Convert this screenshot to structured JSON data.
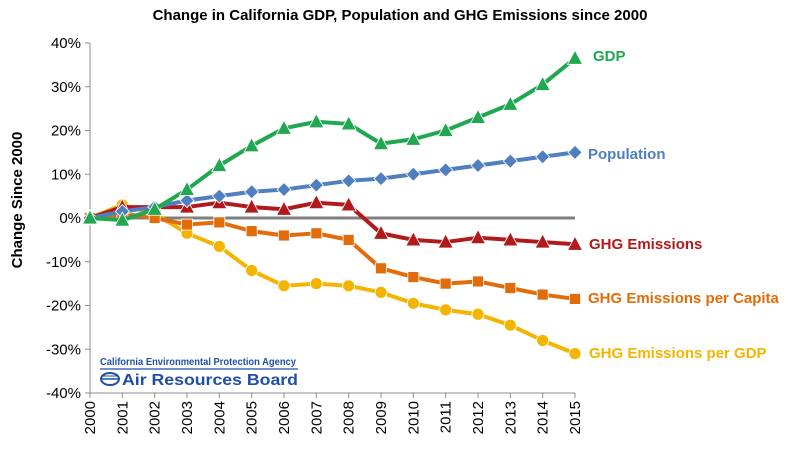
{
  "chart_data": {
    "type": "line",
    "title": "Change in California GDP, Population and GHG Emissions since 2000",
    "ylabel": "Change Since 2000",
    "xlabel": "",
    "x": [
      "2000",
      "2001",
      "2002",
      "2003",
      "2004",
      "2005",
      "2006",
      "2007",
      "2008",
      "2009",
      "2010",
      "2011",
      "2012",
      "2013",
      "2014",
      "2015"
    ],
    "ylim": [
      -40,
      40
    ],
    "yticks": [
      40,
      30,
      20,
      10,
      0,
      -10,
      -20,
      -30,
      -40
    ],
    "ytick_labels": [
      "40%",
      "30%",
      "20%",
      "10%",
      "0%",
      "-10%",
      "-20%",
      "-30%",
      "-40%"
    ],
    "grid": false,
    "legend_placement": "labels at right end of each series",
    "series": [
      {
        "name": "GDP",
        "color": "#1fa84f",
        "marker": "triangle",
        "values": [
          0,
          -0.5,
          2,
          6.5,
          12,
          16.5,
          20.5,
          22,
          21.5,
          17,
          18,
          20,
          23,
          26,
          30.5,
          36.5
        ]
      },
      {
        "name": "Population",
        "color": "#4f7fbf",
        "marker": "diamond",
        "values": [
          0,
          1.5,
          2.5,
          4,
          5,
          6,
          6.5,
          7.5,
          8.5,
          9,
          10,
          11,
          12,
          13,
          14,
          15
        ]
      },
      {
        "name": "GHG Emissions",
        "color": "#b01a1a",
        "marker": "triangle",
        "values": [
          0,
          2.5,
          2.5,
          2.5,
          3.5,
          2.5,
          2,
          3.5,
          3,
          -3.5,
          -5,
          -5.5,
          -4.5,
          -5,
          -5.5,
          -6
        ]
      },
      {
        "name": "GHG Emissions per Capita",
        "color": "#e36c0a",
        "marker": "square",
        "values": [
          0,
          1,
          0,
          -1.5,
          -1,
          -3,
          -4,
          -3.5,
          -5,
          -11.5,
          -13.5,
          -15,
          -14.5,
          -16,
          -17.5,
          -18.5
        ]
      },
      {
        "name": "GHG Emissions per GDP",
        "color": "#f5b400",
        "marker": "circle",
        "values": [
          0,
          3,
          1,
          -3.5,
          -6.5,
          -12,
          -15.5,
          -15,
          -15.5,
          -17,
          -19.5,
          -21,
          -22,
          -24.5,
          -28,
          -31
        ]
      }
    ],
    "zero_line_color": "#7f7f7f"
  },
  "logo": {
    "org_text": "California Environmental Protection Agency",
    "board_text": "Air Resources Board"
  }
}
